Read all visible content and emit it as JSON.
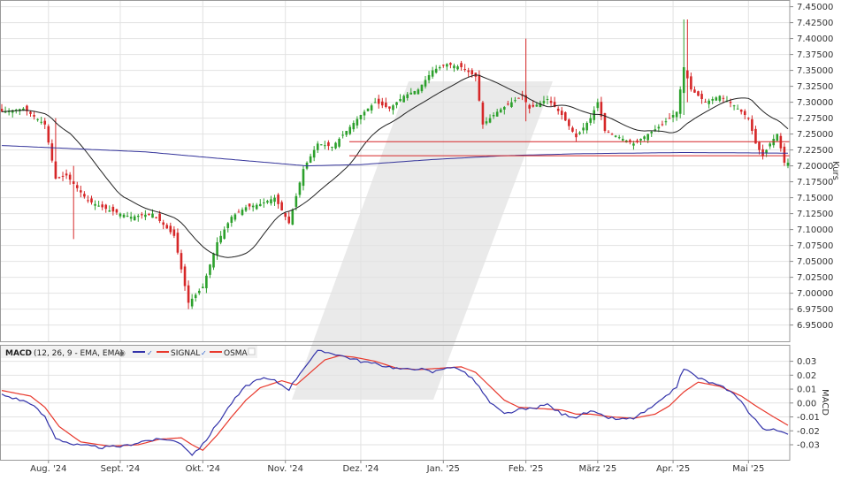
{
  "colors": {
    "up": "#2ca02c",
    "down": "#d62728",
    "sma": "#222222",
    "sma200": "#33339a",
    "hline": "#d62728",
    "macd": "#3333aa",
    "signal": "#e8382c",
    "grid": "#e2e2e2",
    "watermark": "#e6e6e6"
  },
  "chart_data": [
    {
      "type": "candlestick",
      "ylabel": "Kurs",
      "ylim": [
        6.93,
        7.455
      ],
      "yticks": [
        "7.45000",
        "7.42500",
        "7.40000",
        "7.37500",
        "7.35000",
        "7.32500",
        "7.30000",
        "7.27500",
        "7.25000",
        "7.22500",
        "7.20000",
        "7.17500",
        "7.15000",
        "7.12500",
        "7.10000",
        "7.07500",
        "7.05000",
        "7.02500",
        "7.00000",
        "6.97500",
        "6.95000"
      ],
      "months": [
        {
          "label": "Aug. '24",
          "pos": 13
        },
        {
          "label": "Sept. '24",
          "pos": 33
        },
        {
          "label": "Okt. '24",
          "pos": 56
        },
        {
          "label": "Nov. '24",
          "pos": 79
        },
        {
          "label": "Dez. '24",
          "pos": 100
        },
        {
          "label": "Jan. '25",
          "pos": 123
        },
        {
          "label": "Feb. '25",
          "pos": 146
        },
        {
          "label": "März '25",
          "pos": 166
        },
        {
          "label": "Apr. '25",
          "pos": 187
        },
        {
          "label": "Mai '25",
          "pos": 208
        }
      ],
      "num_bars": 220,
      "anchors": [
        [
          0,
          7.285
        ],
        [
          6,
          7.29
        ],
        [
          12,
          7.265
        ],
        [
          15,
          7.18
        ],
        [
          18,
          7.185
        ],
        [
          24,
          7.145
        ],
        [
          30,
          7.13
        ],
        [
          36,
          7.12
        ],
        [
          42,
          7.125
        ],
        [
          48,
          7.09
        ],
        [
          52,
          6.985
        ],
        [
          56,
          7.01
        ],
        [
          60,
          7.08
        ],
        [
          64,
          7.12
        ],
        [
          68,
          7.135
        ],
        [
          72,
          7.14
        ],
        [
          76,
          7.15
        ],
        [
          80,
          7.11
        ],
        [
          84,
          7.195
        ],
        [
          88,
          7.235
        ],
        [
          92,
          7.23
        ],
        [
          96,
          7.255
        ],
        [
          100,
          7.28
        ],
        [
          104,
          7.3
        ],
        [
          108,
          7.29
        ],
        [
          112,
          7.31
        ],
        [
          116,
          7.32
        ],
        [
          120,
          7.35
        ],
        [
          124,
          7.36
        ],
        [
          128,
          7.355
        ],
        [
          132,
          7.34
        ],
        [
          134,
          7.265
        ],
        [
          138,
          7.285
        ],
        [
          142,
          7.3
        ],
        [
          145,
          7.31
        ],
        [
          147,
          7.29
        ],
        [
          152,
          7.305
        ],
        [
          156,
          7.28
        ],
        [
          160,
          7.245
        ],
        [
          164,
          7.275
        ],
        [
          166,
          7.3
        ],
        [
          168,
          7.255
        ],
        [
          172,
          7.245
        ],
        [
          176,
          7.235
        ],
        [
          180,
          7.25
        ],
        [
          184,
          7.265
        ],
        [
          188,
          7.285
        ],
        [
          190,
          7.355
        ],
        [
          192,
          7.32
        ],
        [
          196,
          7.3
        ],
        [
          200,
          7.31
        ],
        [
          204,
          7.295
        ],
        [
          208,
          7.275
        ],
        [
          210,
          7.235
        ],
        [
          212,
          7.215
        ],
        [
          214,
          7.235
        ],
        [
          216,
          7.25
        ],
        [
          218,
          7.205
        ]
      ],
      "hlines": [
        7.238,
        7.216
      ],
      "indicators": [
        "SMA 20",
        "SMA 200"
      ]
    },
    {
      "type": "line",
      "ylabel": "MACD",
      "ylim": [
        -0.037,
        0.038
      ],
      "yticks": [
        "0.03",
        "0.02",
        "0.01",
        "0.00",
        "-0.01",
        "-0.02",
        "-0.03"
      ],
      "legend": {
        "title": "MACD",
        "params": "(12, 26, 9 - EMA, EMA)",
        "series": [
          "SIGNAL",
          "OSMA"
        ]
      },
      "macd_anchors": [
        [
          0,
          0.006
        ],
        [
          8,
          0.0
        ],
        [
          12,
          -0.01
        ],
        [
          15,
          -0.025
        ],
        [
          20,
          -0.03
        ],
        [
          28,
          -0.032
        ],
        [
          34,
          -0.031
        ],
        [
          40,
          -0.027
        ],
        [
          46,
          -0.026
        ],
        [
          50,
          -0.029
        ],
        [
          53,
          -0.037
        ],
        [
          56,
          -0.03
        ],
        [
          60,
          -0.015
        ],
        [
          64,
          0.0
        ],
        [
          68,
          0.012
        ],
        [
          72,
          0.018
        ],
        [
          76,
          0.016
        ],
        [
          80,
          0.01
        ],
        [
          84,
          0.025
        ],
        [
          88,
          0.037
        ],
        [
          92,
          0.036
        ],
        [
          96,
          0.033
        ],
        [
          100,
          0.03
        ],
        [
          104,
          0.028
        ],
        [
          108,
          0.026
        ],
        [
          112,
          0.024
        ],
        [
          116,
          0.025
        ],
        [
          120,
          0.022
        ],
        [
          124,
          0.026
        ],
        [
          128,
          0.024
        ],
        [
          132,
          0.015
        ],
        [
          136,
          0.0
        ],
        [
          140,
          -0.008
        ],
        [
          144,
          -0.005
        ],
        [
          148,
          -0.004
        ],
        [
          152,
          -0.001
        ],
        [
          156,
          -0.008
        ],
        [
          160,
          -0.01
        ],
        [
          164,
          -0.006
        ],
        [
          168,
          -0.01
        ],
        [
          172,
          -0.012
        ],
        [
          176,
          -0.011
        ],
        [
          180,
          -0.005
        ],
        [
          184,
          0.002
        ],
        [
          188,
          0.012
        ],
        [
          190,
          0.025
        ],
        [
          194,
          0.018
        ],
        [
          198,
          0.014
        ],
        [
          202,
          0.01
        ],
        [
          206,
          0.002
        ],
        [
          208,
          -0.007
        ],
        [
          212,
          -0.018
        ],
        [
          216,
          -0.02
        ],
        [
          219,
          -0.023
        ]
      ],
      "signal_anchors": [
        [
          0,
          0.009
        ],
        [
          8,
          0.005
        ],
        [
          12,
          -0.003
        ],
        [
          16,
          -0.017
        ],
        [
          22,
          -0.028
        ],
        [
          30,
          -0.031
        ],
        [
          38,
          -0.03
        ],
        [
          44,
          -0.026
        ],
        [
          50,
          -0.025
        ],
        [
          53,
          -0.03
        ],
        [
          56,
          -0.034
        ],
        [
          60,
          -0.023
        ],
        [
          64,
          -0.01
        ],
        [
          68,
          0.002
        ],
        [
          72,
          0.011
        ],
        [
          78,
          0.016
        ],
        [
          82,
          0.013
        ],
        [
          86,
          0.022
        ],
        [
          90,
          0.031
        ],
        [
          94,
          0.034
        ],
        [
          98,
          0.033
        ],
        [
          104,
          0.03
        ],
        [
          110,
          0.025
        ],
        [
          116,
          0.024
        ],
        [
          122,
          0.025
        ],
        [
          128,
          0.026
        ],
        [
          132,
          0.022
        ],
        [
          136,
          0.012
        ],
        [
          140,
          0.002
        ],
        [
          144,
          -0.003
        ],
        [
          150,
          -0.004
        ],
        [
          156,
          -0.005
        ],
        [
          160,
          -0.008
        ],
        [
          164,
          -0.008
        ],
        [
          170,
          -0.01
        ],
        [
          176,
          -0.011
        ],
        [
          182,
          -0.008
        ],
        [
          186,
          -0.002
        ],
        [
          190,
          0.008
        ],
        [
          194,
          0.015
        ],
        [
          200,
          0.012
        ],
        [
          206,
          0.005
        ],
        [
          210,
          -0.002
        ],
        [
          215,
          -0.01
        ],
        [
          219,
          -0.016
        ]
      ]
    }
  ]
}
